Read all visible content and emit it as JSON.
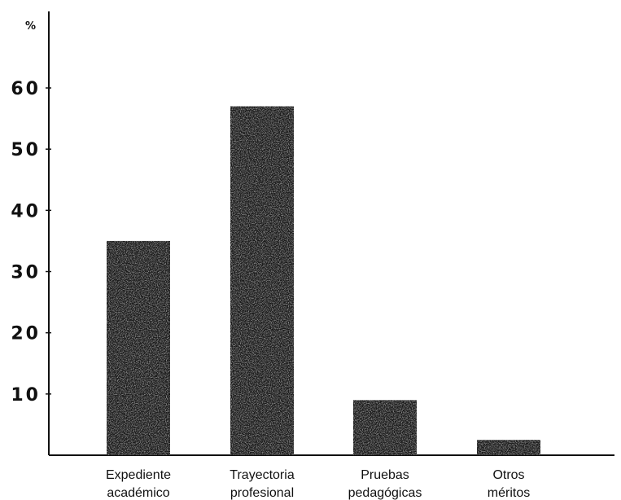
{
  "chart_data": {
    "type": "bar",
    "ylabel": "%",
    "ylim": [
      0,
      62
    ],
    "yticks": [
      10,
      20,
      30,
      40,
      50,
      60
    ],
    "categories": [
      [
        "Expediente",
        "académico"
      ],
      [
        "Trayectoria",
        "profesional"
      ],
      [
        "Pruebas",
        "pedagógicas"
      ],
      [
        "Otros",
        "méritos"
      ]
    ],
    "values": [
      35,
      57,
      9,
      2.5
    ],
    "bar_color": "#1a1a1a",
    "grid": false,
    "legend": "none"
  }
}
